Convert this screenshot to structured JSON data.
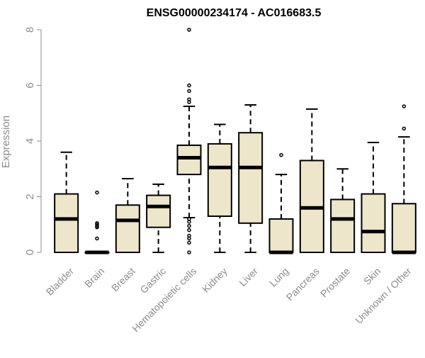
{
  "chart_data": {
    "type": "boxplot",
    "title": "ENSG00000234174 - AC016683.5",
    "xlabel": "",
    "ylabel": "Expression",
    "ylim": [
      0,
      8
    ],
    "yticks": [
      0,
      2,
      4,
      6,
      8
    ],
    "grid": false,
    "legend": "none",
    "box_fill": "#ede6cb",
    "stroke_color": "#000000",
    "axis_color": "#8c8c8c",
    "categories": [
      "Bladder",
      "Brain",
      "Breast",
      "Gastric",
      "Hematopoietic cells",
      "Kidney",
      "Liver",
      "Lung",
      "Pancreas",
      "Prostate",
      "Skin",
      "Unknown / Other"
    ],
    "boxes": [
      {
        "category": "Bladder",
        "whisker_low": 0,
        "q1": 0,
        "median": 1.2,
        "q3": 2.1,
        "whisker_high": 3.6,
        "outliers": []
      },
      {
        "category": "Brain",
        "whisker_low": 0,
        "q1": 0,
        "median": 0,
        "q3": 0,
        "whisker_high": 0,
        "outliers": [
          2.15,
          1.05,
          1.0,
          0.95,
          0.9,
          0.5
        ]
      },
      {
        "category": "Breast",
        "whisker_low": 0,
        "q1": 0,
        "median": 1.15,
        "q3": 1.7,
        "whisker_high": 2.65,
        "outliers": []
      },
      {
        "category": "Gastric",
        "whisker_low": 0,
        "q1": 0.9,
        "median": 1.65,
        "q3": 2.05,
        "whisker_high": 2.45,
        "outliers": []
      },
      {
        "category": "Hematopoietic cells",
        "whisker_low": 1.25,
        "q1": 2.8,
        "median": 3.4,
        "q3": 3.85,
        "whisker_high": 5.25,
        "outliers": [
          8.0,
          6.0,
          5.8,
          5.5,
          5.4,
          1.2,
          1.1,
          0.95,
          0.8,
          0.6,
          0.5,
          0.35,
          0.0
        ]
      },
      {
        "category": "Kidney",
        "whisker_low": 0,
        "q1": 1.3,
        "median": 3.05,
        "q3": 3.9,
        "whisker_high": 4.6,
        "outliers": []
      },
      {
        "category": "Liver",
        "whisker_low": 0,
        "q1": 1.05,
        "median": 3.05,
        "q3": 4.3,
        "whisker_high": 5.3,
        "outliers": []
      },
      {
        "category": "Lung",
        "whisker_low": 0,
        "q1": 0,
        "median": 0,
        "q3": 1.2,
        "whisker_high": 2.8,
        "outliers": [
          3.5
        ]
      },
      {
        "category": "Pancreas",
        "whisker_low": 0,
        "q1": 0,
        "median": 1.6,
        "q3": 3.3,
        "whisker_high": 5.15,
        "outliers": []
      },
      {
        "category": "Prostate",
        "whisker_low": 0,
        "q1": 0,
        "median": 1.2,
        "q3": 1.9,
        "whisker_high": 3.0,
        "outliers": []
      },
      {
        "category": "Skin",
        "whisker_low": 0,
        "q1": 0,
        "median": 0.75,
        "q3": 2.1,
        "whisker_high": 3.95,
        "outliers": []
      },
      {
        "category": "Unknown / Other",
        "whisker_low": 0,
        "q1": 0,
        "median": 0,
        "q3": 1.75,
        "whisker_high": 4.15,
        "outliers": [
          5.25,
          4.45
        ]
      }
    ]
  }
}
